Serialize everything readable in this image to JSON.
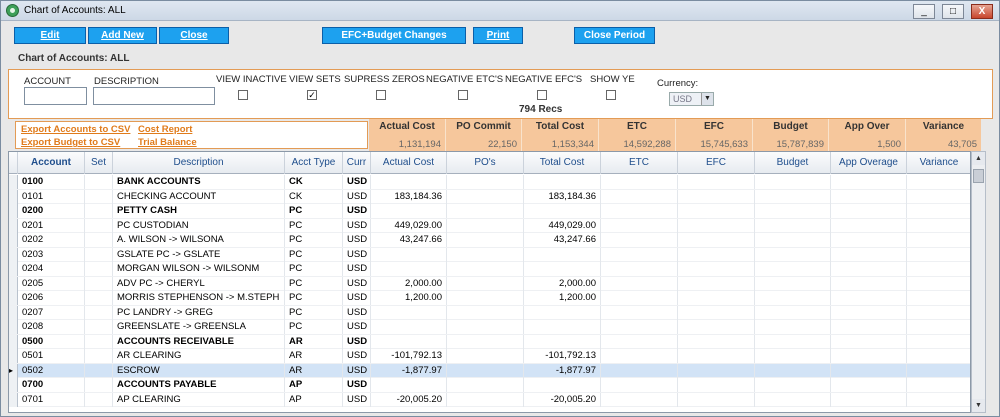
{
  "window": {
    "title": "Chart of Accounts: ALL",
    "controls": {
      "minimize": "_",
      "maximize": "□",
      "close": "X"
    }
  },
  "toolbar": {
    "edit": "Edit",
    "add_new": "Add New",
    "close": "Close",
    "efc_budget": "EFC+Budget Changes",
    "print": "Print",
    "close_period": "Close Period"
  },
  "subtitle": "Chart of Accounts: ALL",
  "filters": {
    "account_label": "ACCOUNT",
    "account_value": "",
    "description_label": "DESCRIPTION",
    "description_value": "",
    "options": [
      {
        "label": "VIEW INACTIVE",
        "checked": false
      },
      {
        "label": "VIEW SETS",
        "checked": true
      },
      {
        "label": "SUPRESS ZEROS",
        "checked": false
      },
      {
        "label": "NEGATIVE ETC'S",
        "checked": false
      },
      {
        "label": "NEGATIVE EFC'S",
        "checked": false
      },
      {
        "label": "SHOW YE",
        "checked": false
      }
    ],
    "currency_label": "Currency:",
    "currency_value": "USD",
    "records": "794 Recs"
  },
  "links": {
    "export_accounts": "Export Accounts to CSV",
    "export_budget": "Export Budget to CSV",
    "cost_report": "Cost Report",
    "trial_balance": "Trial Balance"
  },
  "totals": [
    {
      "label": "Actual Cost",
      "value": "1,131,194"
    },
    {
      "label": "PO Commit",
      "value": "22,150"
    },
    {
      "label": "Total Cost",
      "value": "1,153,344"
    },
    {
      "label": "ETC",
      "value": "14,592,288"
    },
    {
      "label": "EFC",
      "value": "15,745,633"
    },
    {
      "label": "Budget",
      "value": "15,787,839"
    },
    {
      "label": "App Over",
      "value": "1,500"
    },
    {
      "label": "Variance",
      "value": "43,705"
    }
  ],
  "columns": [
    "Account",
    "Set",
    "Description",
    "Acct Type",
    "Curr",
    "Actual Cost",
    "PO's",
    "Total Cost",
    "ETC",
    "EFC",
    "Budget",
    "App Overage",
    "Variance"
  ],
  "rows": [
    {
      "account": "0100",
      "set": "",
      "description": "BANK ACCOUNTS",
      "type": "CK",
      "curr": "USD",
      "actual": "",
      "po": "",
      "total": "",
      "bold": true
    },
    {
      "account": "0101",
      "set": "",
      "description": "CHECKING ACCOUNT",
      "type": "CK",
      "curr": "USD",
      "actual": "183,184.36",
      "po": "",
      "total": "183,184.36",
      "bold": false
    },
    {
      "account": "0200",
      "set": "",
      "description": "PETTY CASH",
      "type": "PC",
      "curr": "USD",
      "actual": "",
      "po": "",
      "total": "",
      "bold": true
    },
    {
      "account": "0201",
      "set": "",
      "description": "PC CUSTODIAN",
      "type": "PC",
      "curr": "USD",
      "actual": "449,029.00",
      "po": "",
      "total": "449,029.00",
      "bold": false
    },
    {
      "account": "0202",
      "set": "",
      "description": "A. WILSON -> WILSONA",
      "type": "PC",
      "curr": "USD",
      "actual": "43,247.66",
      "po": "",
      "total": "43,247.66",
      "bold": false
    },
    {
      "account": "0203",
      "set": "",
      "description": "GSLATE PC -> GSLATE",
      "type": "PC",
      "curr": "USD",
      "actual": "",
      "po": "",
      "total": "",
      "bold": false
    },
    {
      "account": "0204",
      "set": "",
      "description": "MORGAN WILSON -> WILSONM",
      "type": "PC",
      "curr": "USD",
      "actual": "",
      "po": "",
      "total": "",
      "bold": false
    },
    {
      "account": "0205",
      "set": "",
      "description": "ADV PC -> CHERYL",
      "type": "PC",
      "curr": "USD",
      "actual": "2,000.00",
      "po": "",
      "total": "2,000.00",
      "bold": false
    },
    {
      "account": "0206",
      "set": "",
      "description": "MORRIS STEPHENSON -> M.STEPH",
      "type": "PC",
      "curr": "USD",
      "actual": "1,200.00",
      "po": "",
      "total": "1,200.00",
      "bold": false
    },
    {
      "account": "0207",
      "set": "",
      "description": "PC LANDRY -> GREG",
      "type": "PC",
      "curr": "USD",
      "actual": "",
      "po": "",
      "total": "",
      "bold": false
    },
    {
      "account": "0208",
      "set": "",
      "description": "GREENSLATE -> GREENSLA",
      "type": "PC",
      "curr": "USD",
      "actual": "",
      "po": "",
      "total": "",
      "bold": false
    },
    {
      "account": "0500",
      "set": "",
      "description": "ACCOUNTS RECEIVABLE",
      "type": "AR",
      "curr": "USD",
      "actual": "",
      "po": "",
      "total": "",
      "bold": true
    },
    {
      "account": "0501",
      "set": "",
      "description": "AR CLEARING",
      "type": "AR",
      "curr": "USD",
      "actual": "-101,792.13",
      "po": "",
      "total": "-101,792.13",
      "bold": false
    },
    {
      "account": "0502",
      "set": "",
      "description": "ESCROW",
      "type": "AR",
      "curr": "USD",
      "actual": "-1,877.97",
      "po": "",
      "total": "-1,877.97",
      "bold": false,
      "selected": true
    },
    {
      "account": "0700",
      "set": "",
      "description": "ACCOUNTS PAYABLE",
      "type": "AP",
      "curr": "USD",
      "actual": "",
      "po": "",
      "total": "",
      "bold": true
    },
    {
      "account": "0701",
      "set": "",
      "description": "AP CLEARING",
      "type": "AP",
      "curr": "USD",
      "actual": "-20,005.20",
      "po": "",
      "total": "-20,005.20",
      "bold": false
    }
  ]
}
